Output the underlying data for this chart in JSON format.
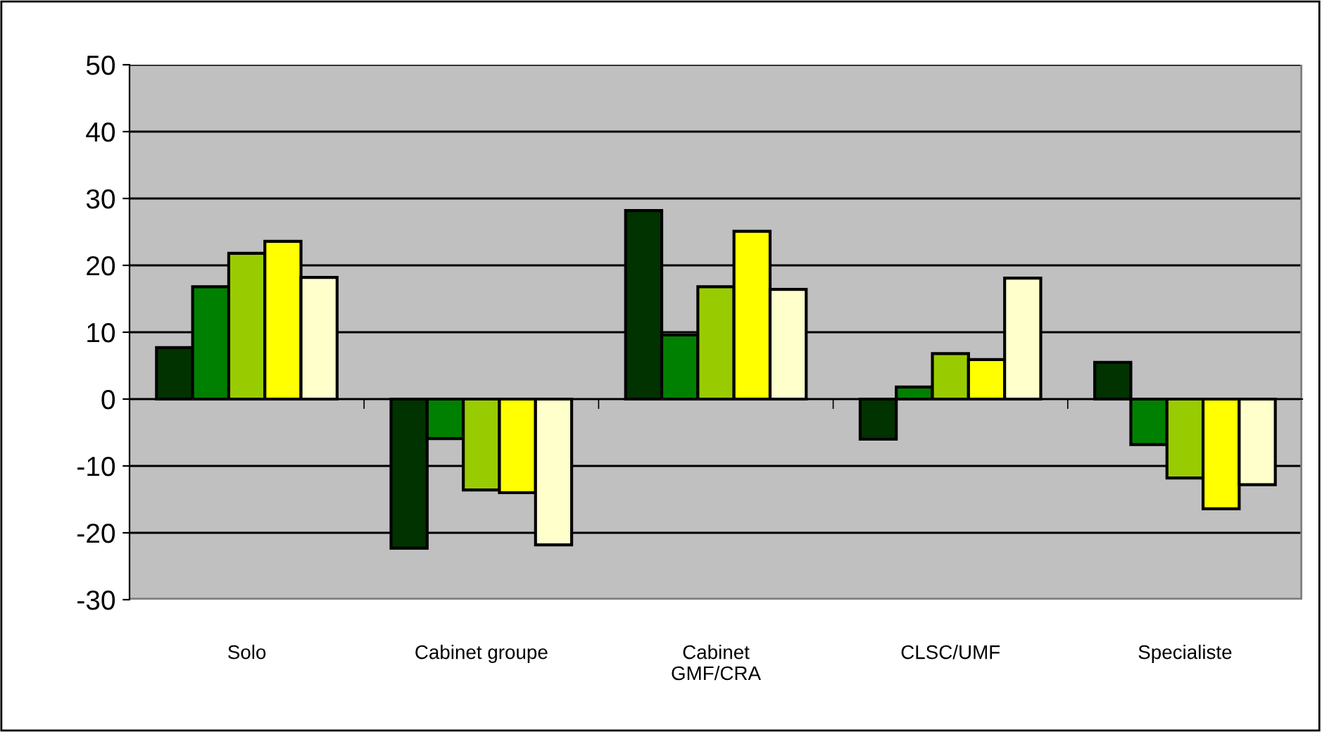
{
  "chart_data": {
    "type": "bar",
    "categories": [
      "Solo",
      "Cabinet groupe",
      "Cabinet\nGMF/CRA",
      "CLSC/UMF",
      "Specialiste"
    ],
    "series": [
      {
        "color": "#003300",
        "values": [
          7.7,
          -22.3,
          28.2,
          -6.0,
          5.5
        ]
      },
      {
        "color": "#008000",
        "values": [
          16.8,
          -5.9,
          9.6,
          1.8,
          -6.8
        ]
      },
      {
        "color": "#99cc00",
        "values": [
          21.8,
          -13.6,
          16.8,
          6.8,
          -11.8
        ]
      },
      {
        "color": "#ffff00",
        "values": [
          23.6,
          -14.0,
          25.1,
          5.9,
          -16.4
        ]
      },
      {
        "color": "#ffffcc",
        "values": [
          18.2,
          -21.8,
          16.4,
          18.1,
          -12.8
        ]
      }
    ],
    "ylim": [
      -30,
      50
    ],
    "yticks": [
      -30,
      -20,
      -10,
      0,
      10,
      20,
      30,
      40,
      50
    ],
    "grid": "y"
  }
}
